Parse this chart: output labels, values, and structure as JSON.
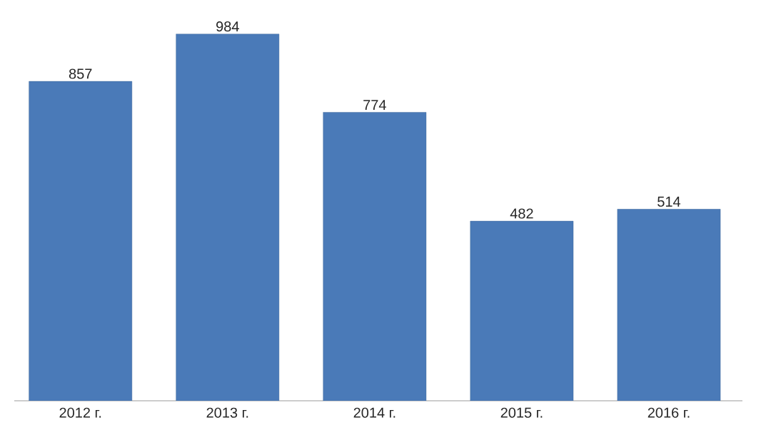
{
  "chart_data": {
    "type": "bar",
    "categories": [
      "2012 г.",
      "2013 г.",
      "2014 г.",
      "2015 г.",
      "2016 г."
    ],
    "values": [
      857,
      984,
      774,
      482,
      514
    ],
    "color": "#4a7ab8",
    "data_labels": true
  }
}
